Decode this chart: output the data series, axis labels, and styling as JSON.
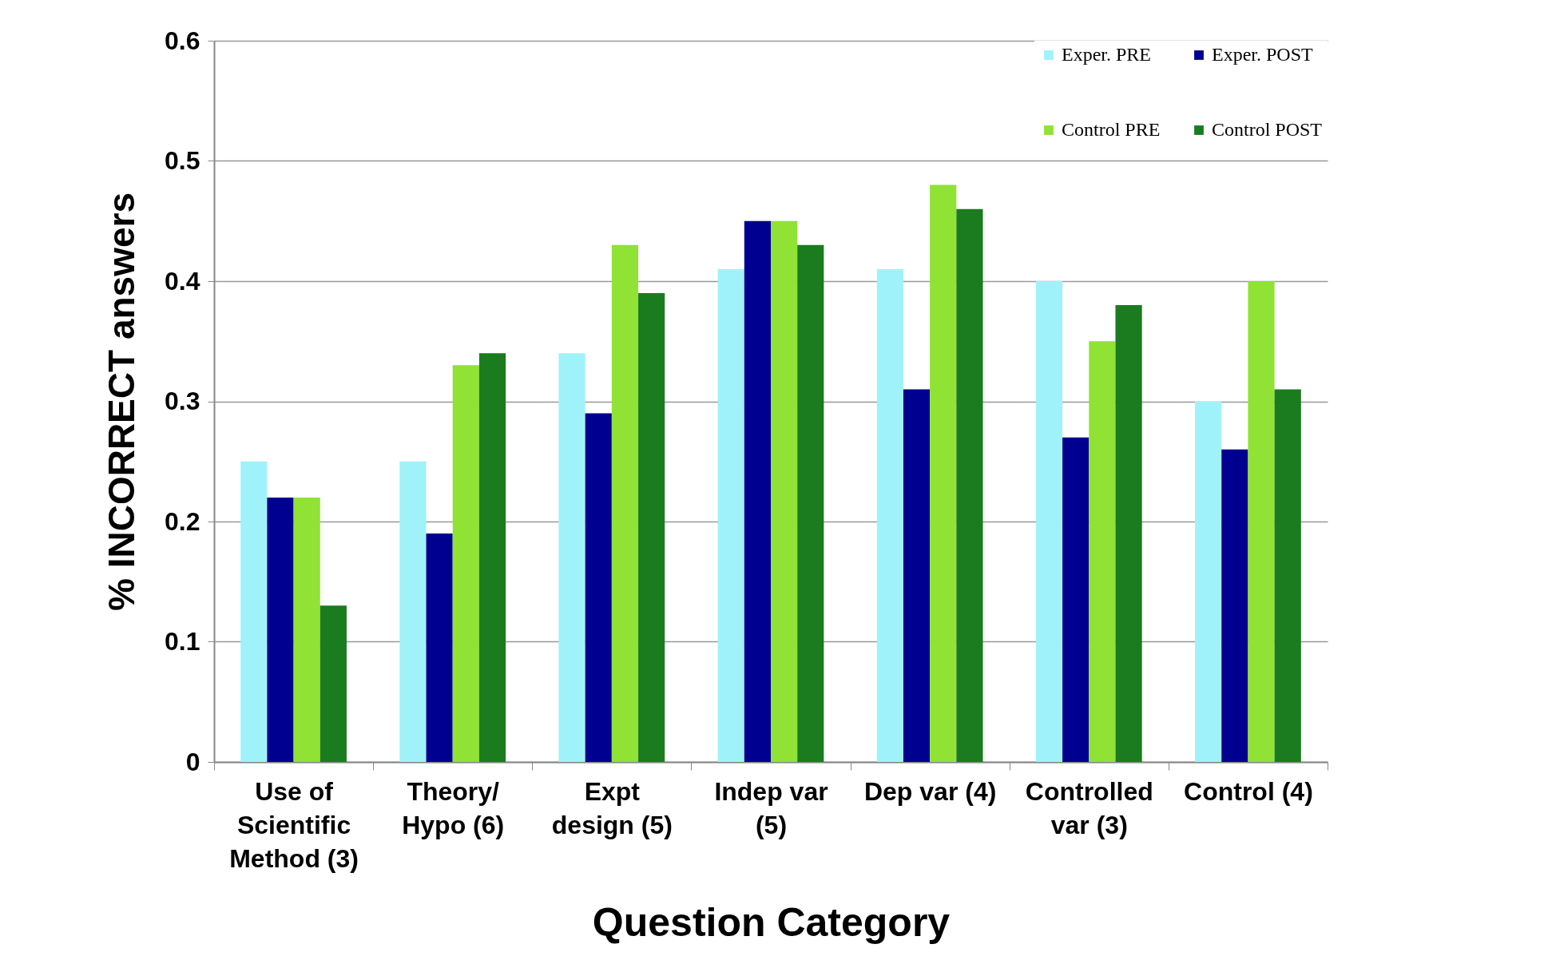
{
  "chart_data": {
    "type": "bar",
    "xlabel": "Question Category",
    "ylabel": "% INCORRECT answers",
    "categories": [
      "Use of Scientific Method (3)",
      "Theory/ Hypo (6)",
      "Expt design (5)",
      "Indep var (5)",
      "Dep var (4)",
      "Controlled var (3)",
      "Control (4)"
    ],
    "series": [
      {
        "name": "Exper. PRE",
        "color": "#a0f2fa",
        "values": [
          0.25,
          0.25,
          0.34,
          0.41,
          0.41,
          0.4,
          0.3
        ]
      },
      {
        "name": "Exper. POST",
        "color": "#000090",
        "values": [
          0.22,
          0.19,
          0.29,
          0.45,
          0.31,
          0.27,
          0.26
        ]
      },
      {
        "name": "Control PRE",
        "color": "#90e234",
        "values": [
          0.22,
          0.33,
          0.43,
          0.45,
          0.48,
          0.35,
          0.4
        ]
      },
      {
        "name": "Control POST",
        "color": "#1a7c1e",
        "values": [
          0.13,
          0.34,
          0.39,
          0.43,
          0.46,
          0.38,
          0.31
        ]
      }
    ],
    "ylim": [
      0,
      0.6
    ],
    "yticks": [
      0,
      0.1,
      0.2,
      0.3,
      0.4,
      0.5,
      0.6
    ],
    "grid": "y",
    "legend": "top right"
  }
}
